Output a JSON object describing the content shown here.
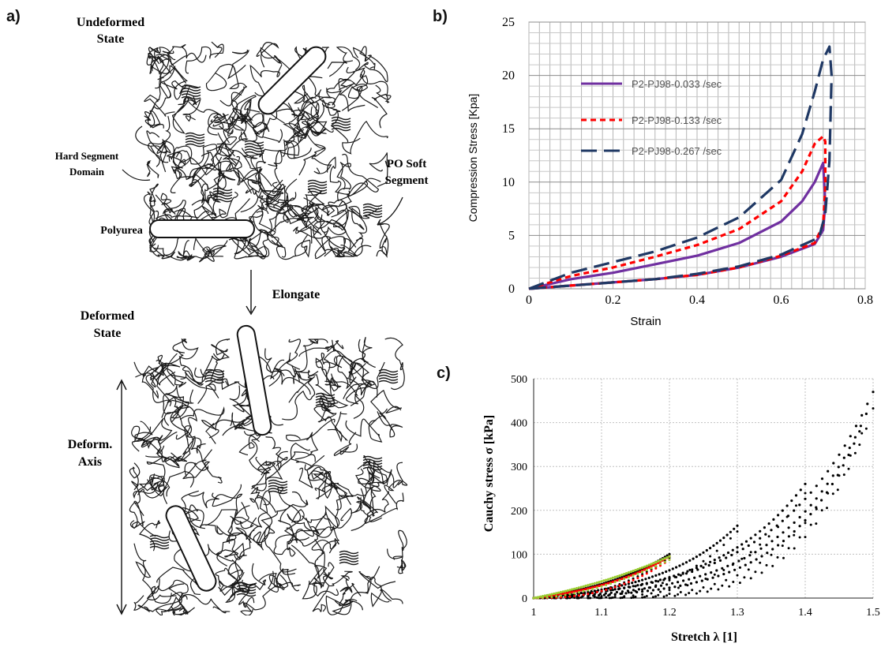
{
  "panel_a": {
    "label": "a)",
    "undeformed_title_line1": "Undeformed",
    "undeformed_title_line2": "State",
    "hard_segment_line1": "Hard Segment",
    "hard_segment_line2": "Domain",
    "po_soft_line1": "PO Soft",
    "po_soft_line2": "Segment",
    "polyurea": "Polyurea",
    "elongate": "Elongate",
    "deformed_title_line1": "Deformed",
    "deformed_title_line2": "State",
    "deform_axis_line1": "Deform.",
    "deform_axis_line2": "Axis"
  },
  "chart_data": [
    {
      "id": "b",
      "label": "b)",
      "type": "line",
      "xlabel": "Strain",
      "ylabel": "Compression Stress [Kpa]",
      "xlim": [
        0,
        0.8
      ],
      "ylim": [
        0,
        25
      ],
      "xticks": [
        "0",
        "0.2",
        "0.4",
        "0.6",
        "0.8"
      ],
      "yticks": [
        "0",
        "5",
        "10",
        "15",
        "20",
        "25"
      ],
      "grid": true,
      "legend_position": "upper-left",
      "series": [
        {
          "name": "P2-PJ98-0.033 /sec",
          "color": "#7030a0",
          "dash": "solid",
          "loading": [
            [
              0,
              0
            ],
            [
              0.1,
              0.9
            ],
            [
              0.2,
              1.5
            ],
            [
              0.3,
              2.3
            ],
            [
              0.4,
              3.1
            ],
            [
              0.5,
              4.3
            ],
            [
              0.6,
              6.3
            ],
            [
              0.65,
              8.2
            ],
            [
              0.68,
              10.0
            ],
            [
              0.7,
              11.8
            ]
          ],
          "unloading": [
            [
              0.7,
              11.8
            ],
            [
              0.705,
              8.0
            ],
            [
              0.7,
              5.5
            ],
            [
              0.68,
              4.2
            ],
            [
              0.6,
              3.0
            ],
            [
              0.5,
              2.0
            ],
            [
              0.4,
              1.3
            ],
            [
              0.3,
              0.9
            ],
            [
              0.2,
              0.6
            ],
            [
              0.1,
              0.3
            ],
            [
              0,
              0
            ]
          ]
        },
        {
          "name": "P2-PJ98-0.133 /sec",
          "color": "#ff0000",
          "dash": "short-dash",
          "loading": [
            [
              0,
              0
            ],
            [
              0.1,
              1.2
            ],
            [
              0.2,
              2.0
            ],
            [
              0.3,
              3.0
            ],
            [
              0.4,
              4.1
            ],
            [
              0.5,
              5.6
            ],
            [
              0.6,
              8.2
            ],
            [
              0.65,
              11.0
            ],
            [
              0.68,
              13.6
            ],
            [
              0.7,
              14.3
            ],
            [
              0.705,
              13.8
            ]
          ],
          "unloading": [
            [
              0.705,
              13.8
            ],
            [
              0.705,
              9.5
            ],
            [
              0.7,
              6.0
            ],
            [
              0.68,
              4.3
            ],
            [
              0.6,
              3.1
            ],
            [
              0.5,
              2.0
            ],
            [
              0.4,
              1.3
            ],
            [
              0.3,
              0.9
            ],
            [
              0.2,
              0.6
            ],
            [
              0.1,
              0.3
            ],
            [
              0,
              0
            ]
          ]
        },
        {
          "name": "P2-PJ98-0.267 /sec",
          "color": "#1f3864",
          "dash": "long-dash",
          "loading": [
            [
              0,
              0
            ],
            [
              0.1,
              1.5
            ],
            [
              0.2,
              2.5
            ],
            [
              0.3,
              3.5
            ],
            [
              0.4,
              4.8
            ],
            [
              0.5,
              6.7
            ],
            [
              0.6,
              10.2
            ],
            [
              0.65,
              14.5
            ],
            [
              0.68,
              18.5
            ],
            [
              0.7,
              21.5
            ],
            [
              0.715,
              22.7
            ],
            [
              0.72,
              20.0
            ]
          ],
          "unloading": [
            [
              0.72,
              20.0
            ],
            [
              0.715,
              12.0
            ],
            [
              0.705,
              7.0
            ],
            [
              0.69,
              4.8
            ],
            [
              0.6,
              3.2
            ],
            [
              0.5,
              2.1
            ],
            [
              0.4,
              1.4
            ],
            [
              0.3,
              0.9
            ],
            [
              0.2,
              0.6
            ],
            [
              0.1,
              0.3
            ],
            [
              0,
              0
            ]
          ]
        }
      ]
    },
    {
      "id": "c",
      "label": "c)",
      "type": "scatter",
      "xlabel": "Stretch λ [1]",
      "ylabel": "Cauchy stress σ [kPa]",
      "xlim": [
        1,
        1.5
      ],
      "ylim": [
        0,
        500
      ],
      "xticks": [
        "1",
        "1.1",
        "1.2",
        "1.3",
        "1.4",
        "1.5"
      ],
      "yticks": [
        "0",
        "100",
        "200",
        "300",
        "400",
        "500"
      ],
      "grid": true,
      "series": [
        {
          "color": "#000000",
          "peak_stretch": 1.2,
          "peak_stress": 100,
          "curvature": 1.5
        },
        {
          "color": "#000000",
          "peak_stretch": 1.3,
          "peak_stress": 165,
          "curvature": 2.5
        },
        {
          "color": "#000000",
          "peak_stretch": 1.4,
          "peak_stress": 260,
          "curvature": 3.0
        },
        {
          "color": "#000000",
          "peak_stretch": 1.5,
          "peak_stress": 470,
          "curvature": 3.5
        },
        {
          "color": "#000000",
          "peak_stretch": 1.49,
          "peak_stress": 420,
          "curvature": 4.0
        },
        {
          "color": "#000000",
          "peak_stretch": 1.48,
          "peak_stress": 380,
          "curvature": 4.5
        },
        {
          "color": "#ff0000",
          "peak_stretch": 1.2,
          "peak_stress": 95,
          "curvature": 1.6
        },
        {
          "color": "#9acd32",
          "peak_stretch": 1.2,
          "peak_stress": 95,
          "curvature": 0.8
        }
      ]
    }
  ]
}
